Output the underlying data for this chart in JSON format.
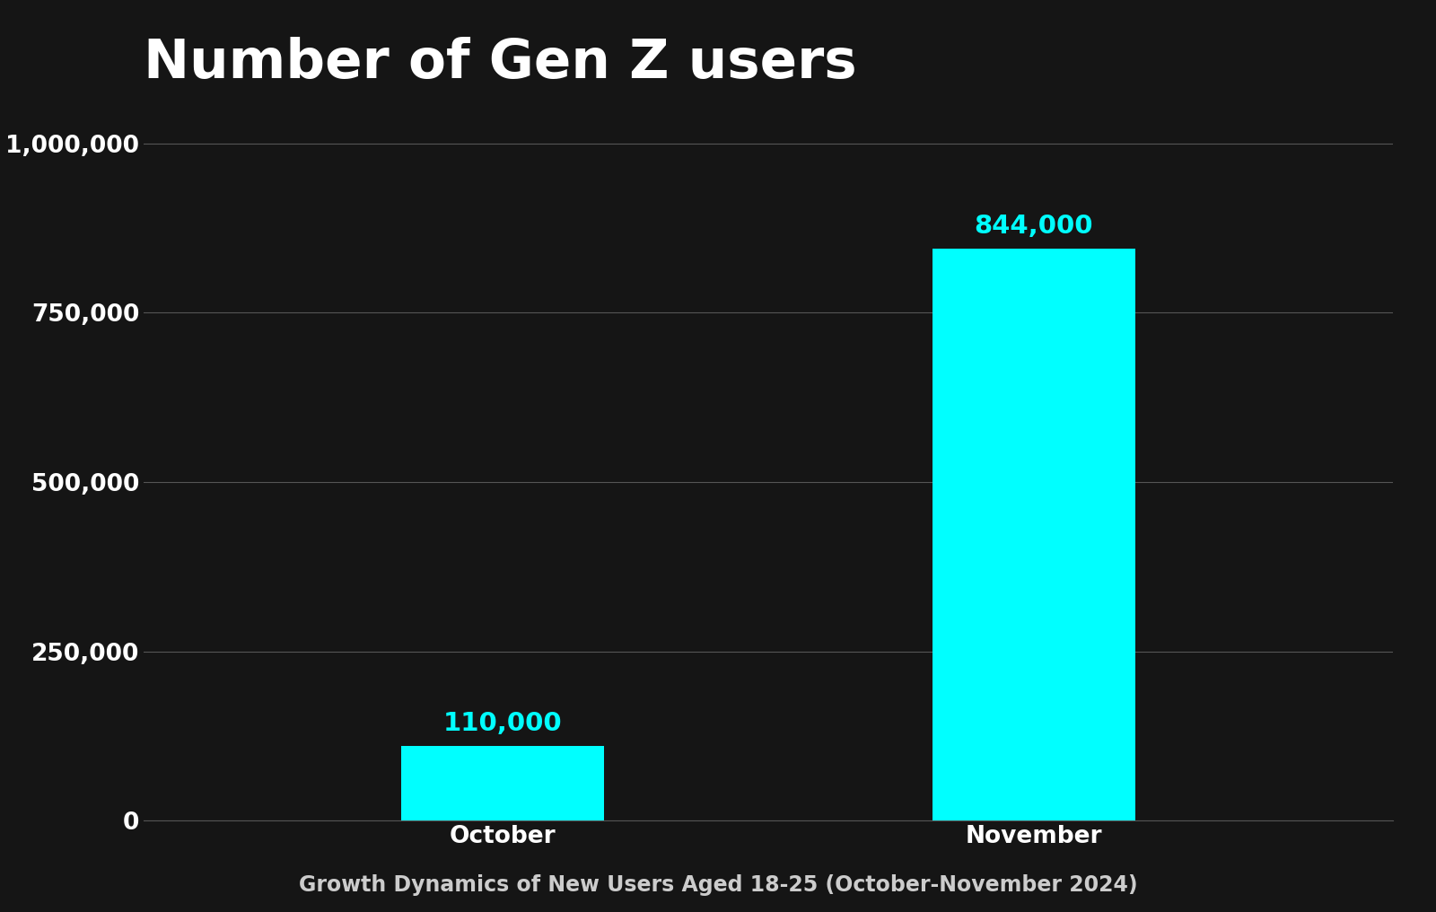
{
  "title": "Number of Gen Z users",
  "subtitle": "Growth Dynamics of New Users Aged 18-25 (October-November 2024)",
  "categories": [
    "October",
    "November"
  ],
  "values": [
    110000,
    844000
  ],
  "bar_color": "#00FFFF",
  "background_color": "#151515",
  "title_color": "#FFFFFF",
  "subtitle_color": "#CCCCCC",
  "tick_label_color": "#FFFFFF",
  "value_label_color": "#00FFFF",
  "grid_color": "#555555",
  "ylim": [
    0,
    1050000
  ],
  "yticks": [
    0,
    250000,
    500000,
    750000,
    1000000
  ],
  "title_fontsize": 44,
  "subtitle_fontsize": 17,
  "tick_fontsize": 19,
  "value_fontsize": 21,
  "bar_width": 0.13
}
